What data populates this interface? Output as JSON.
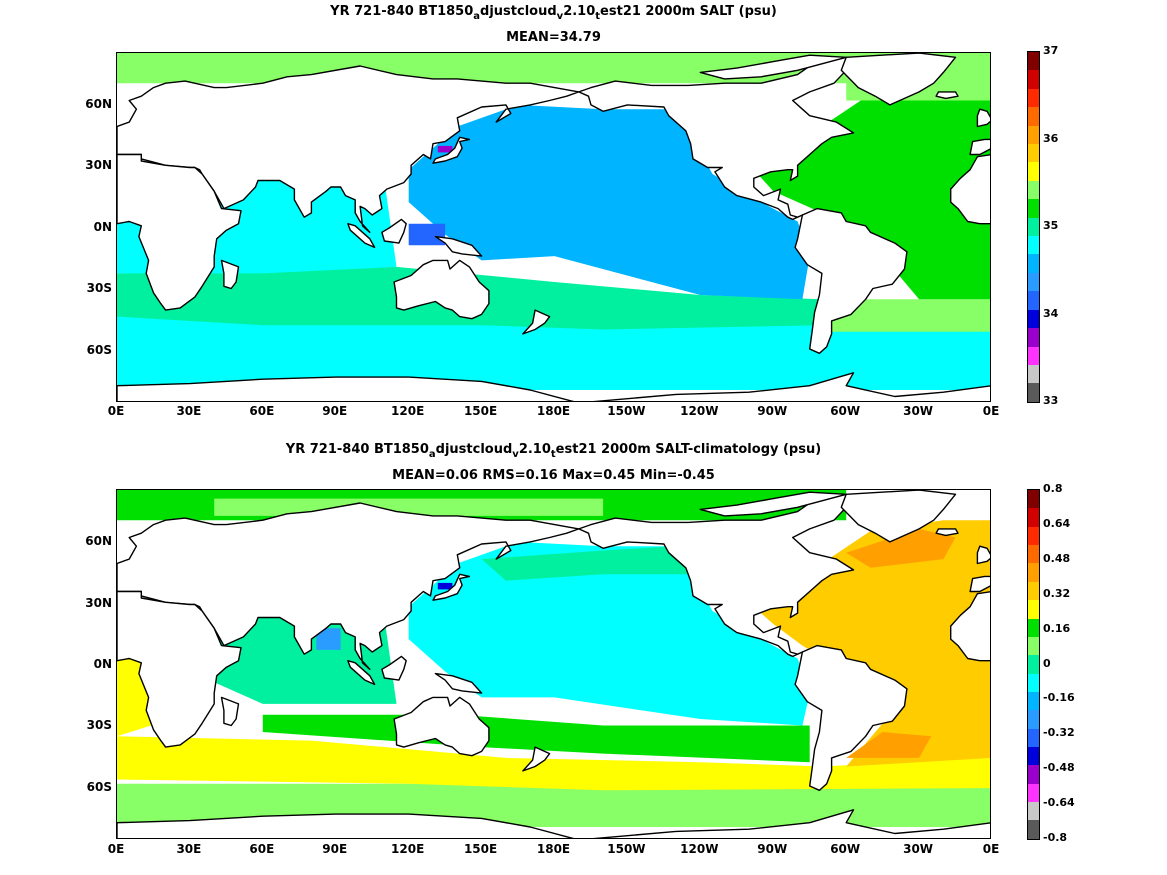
{
  "panels": [
    {
      "title_parts": [
        "YR 721-840 BT1850",
        "a",
        "djustcloud",
        "v",
        "2.10",
        "t",
        "est21 2000m SALT (psu)"
      ],
      "subtitle": "MEAN=34.79",
      "lat_labels": [
        "60N",
        "30N",
        "0N",
        "30S",
        "60S"
      ],
      "lon_labels": [
        "0E",
        "30E",
        "60E",
        "90E",
        "120E",
        "150E",
        "180E",
        "150W",
        "120W",
        "90W",
        "60W",
        "30W",
        "0E"
      ],
      "colorbar": {
        "colors": [
          "#5a5a5a",
          "#c8c8c8",
          "#ff33ff",
          "#9900cc",
          "#0000dd",
          "#2266ff",
          "#2a9cff",
          "#00b4ff",
          "#00ffff",
          "#00f0a0",
          "#00e000",
          "#88ff66",
          "#ffff00",
          "#ffcc00",
          "#ffa000",
          "#ff6a00",
          "#ff2a00",
          "#d00000",
          "#800000"
        ],
        "tick_labels": [
          "37",
          "36",
          "35",
          "34",
          "33"
        ]
      },
      "colors": {
        "pacific": "#00b4ff",
        "indian": "#00ffff",
        "southern": "#00f0a0",
        "atlantic": "#00e000",
        "arctic": "#88ff66",
        "med": "#8b1a1a",
        "japan_sea": "#9900cc",
        "warm_pool": "#2266ff"
      }
    },
    {
      "title_parts": [
        "YR 721-840 BT1850",
        "a",
        "djustcloud",
        "v",
        "2.10",
        "t",
        "est21 2000m SALT-climatology (psu)"
      ],
      "subtitle": "MEAN=0.06   RMS=0.16   Max=0.45   Min=-0.45",
      "lat_labels": [
        "60N",
        "30N",
        "0N",
        "30S",
        "60S"
      ],
      "lon_labels": [
        "0E",
        "30E",
        "60E",
        "90E",
        "120E",
        "150E",
        "180E",
        "150W",
        "120W",
        "90W",
        "60W",
        "30W",
        "0E"
      ],
      "colorbar": {
        "colors": [
          "#5a5a5a",
          "#c8c8c8",
          "#ff33ff",
          "#9900cc",
          "#0000dd",
          "#2266ff",
          "#2a9cff",
          "#00b4ff",
          "#00ffff",
          "#00f0a0",
          "#88ff66",
          "#00e000",
          "#ffff00",
          "#ffcc00",
          "#ffa000",
          "#ff6a00",
          "#ff2a00",
          "#d00000",
          "#800000"
        ],
        "tick_labels": [
          "0.8",
          "0.64",
          "0.48",
          "0.32",
          "0.16",
          "0",
          "-0.16",
          "-0.32",
          "-0.48",
          "-0.64",
          "-0.8"
        ]
      },
      "colors": {
        "pacific": "#00ffff",
        "southern_band": "#ffff00",
        "atlantic": "#ffcc00",
        "atlantic_hot": "#ffa000",
        "indian_north": "#00f0a0",
        "arctic": "#00e000",
        "green_band": "#00e000",
        "light_band": "#88ff66",
        "japan_sea": "#0000dd",
        "bay_bengal": "#2a9cff"
      }
    }
  ]
}
